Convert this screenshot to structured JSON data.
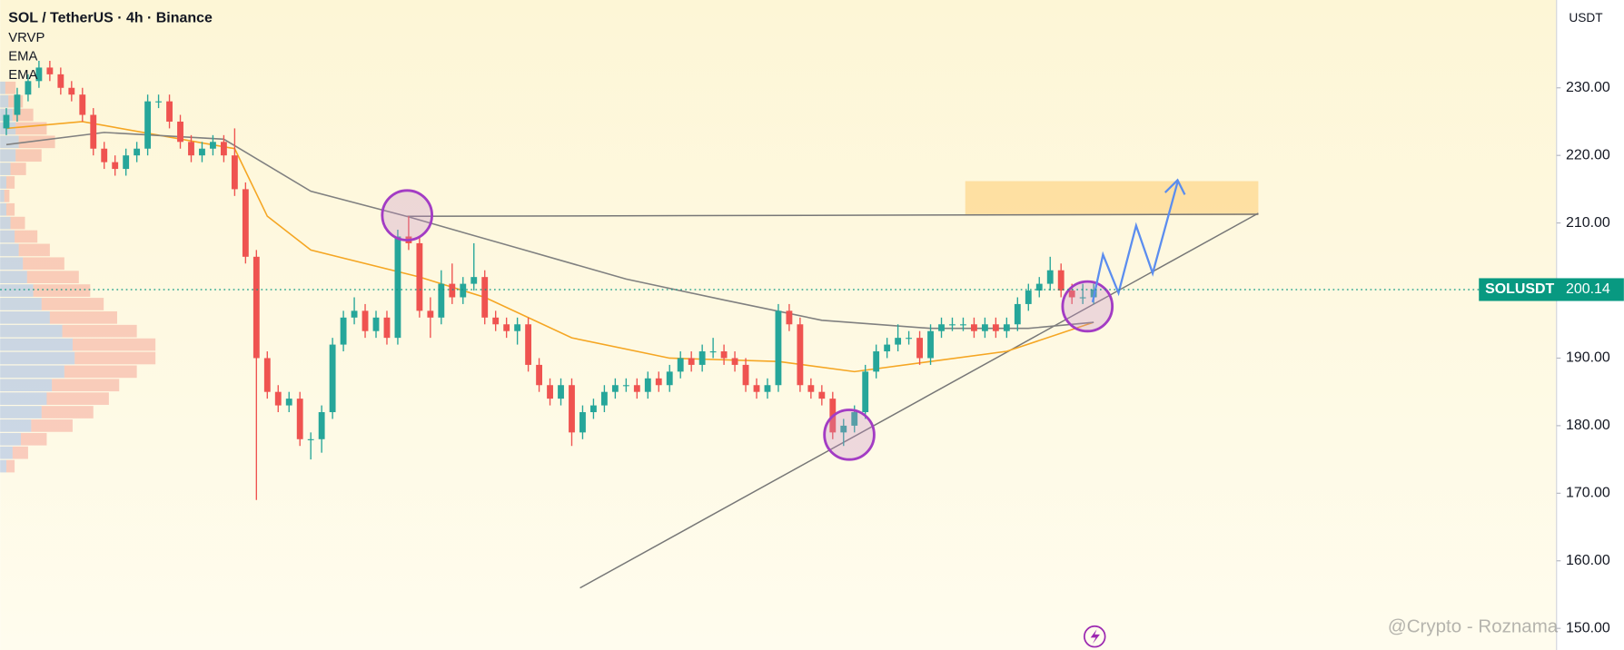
{
  "chart_data": {
    "type": "candlestick",
    "title": "SOL / TetherUS · 4h · Binance",
    "indicators": [
      "VRVP",
      "EMA",
      "EMA"
    ],
    "currency": "USDT",
    "symbol_label": "SOLUSDT",
    "last_price": 200.14,
    "watermark": "@Crypto - Roznama",
    "up_color": "#26a69a",
    "down_color": "#ef5350",
    "ylim": [
      146.8,
      243
    ],
    "yticks": [
      {
        "value": 150,
        "label": "150.00"
      },
      {
        "value": 160,
        "label": "160.00"
      },
      {
        "value": 170,
        "label": "170.00"
      },
      {
        "value": 180,
        "label": "180.00"
      },
      {
        "value": 190,
        "label": "190.00"
      },
      {
        "value": 200,
        "label": "200.00"
      },
      {
        "value": 210,
        "label": "210.00"
      },
      {
        "value": 220,
        "label": "220.00"
      },
      {
        "value": 230,
        "label": "230.00"
      }
    ],
    "ohlc": [
      [
        224,
        227,
        223,
        226
      ],
      [
        226,
        230,
        225,
        229
      ],
      [
        229,
        232,
        228,
        231
      ],
      [
        231,
        234,
        230,
        233
      ],
      [
        233,
        234,
        231,
        232
      ],
      [
        232,
        233,
        229,
        230
      ],
      [
        230,
        231,
        228,
        229
      ],
      [
        229,
        230,
        225,
        226
      ],
      [
        226,
        227,
        220,
        221
      ],
      [
        221,
        222,
        218,
        219
      ],
      [
        219,
        220,
        217,
        218
      ],
      [
        218,
        221,
        217,
        220
      ],
      [
        220,
        222,
        219,
        221
      ],
      [
        221,
        229,
        220,
        228
      ],
      [
        228,
        229,
        227,
        228
      ],
      [
        228,
        229,
        224,
        225
      ],
      [
        225,
        226,
        221,
        222
      ],
      [
        222,
        223,
        219,
        220
      ],
      [
        220,
        222,
        219,
        221
      ],
      [
        221,
        223,
        220,
        222
      ],
      [
        222,
        223,
        219,
        220
      ],
      [
        220,
        224,
        214,
        215
      ],
      [
        215,
        216,
        204,
        205
      ],
      [
        205,
        206,
        169,
        190
      ],
      [
        190,
        191,
        184,
        185
      ],
      [
        185,
        186,
        182,
        183
      ],
      [
        183,
        185,
        182,
        184
      ],
      [
        184,
        185,
        177,
        178
      ],
      [
        178,
        179,
        175,
        178
      ],
      [
        178,
        183,
        176,
        182
      ],
      [
        182,
        193,
        181,
        192
      ],
      [
        192,
        197,
        191,
        196
      ],
      [
        196,
        199,
        195,
        197
      ],
      [
        197,
        198,
        193,
        194
      ],
      [
        194,
        197,
        193,
        196
      ],
      [
        196,
        197,
        192,
        193
      ],
      [
        193,
        209,
        192,
        208
      ],
      [
        208,
        211,
        206,
        207
      ],
      [
        207,
        208,
        196,
        197
      ],
      [
        197,
        199,
        193,
        196
      ],
      [
        196,
        203,
        195,
        201
      ],
      [
        201,
        204,
        198,
        199
      ],
      [
        199,
        202,
        198,
        201
      ],
      [
        201,
        207,
        200,
        202
      ],
      [
        202,
        203,
        195,
        196
      ],
      [
        196,
        197,
        194,
        195
      ],
      [
        195,
        196,
        193,
        194
      ],
      [
        194,
        196,
        192,
        195
      ],
      [
        195,
        196,
        188,
        189
      ],
      [
        189,
        190,
        185,
        186
      ],
      [
        186,
        187,
        183,
        184
      ],
      [
        184,
        187,
        183,
        186
      ],
      [
        186,
        187,
        177,
        179
      ],
      [
        179,
        183,
        178,
        182
      ],
      [
        182,
        184,
        181,
        183
      ],
      [
        183,
        186,
        182,
        185
      ],
      [
        185,
        187,
        184,
        186
      ],
      [
        186,
        187,
        185,
        186
      ],
      [
        186,
        187,
        184,
        185
      ],
      [
        185,
        188,
        184,
        187
      ],
      [
        187,
        188,
        185,
        186
      ],
      [
        186,
        189,
        185,
        188
      ],
      [
        188,
        191,
        187,
        190
      ],
      [
        190,
        191,
        188,
        189
      ],
      [
        189,
        192,
        188,
        191
      ],
      [
        191,
        193,
        190,
        191
      ],
      [
        191,
        192,
        189,
        190
      ],
      [
        190,
        191,
        188,
        189
      ],
      [
        189,
        190,
        185,
        186
      ],
      [
        186,
        187,
        184,
        185
      ],
      [
        185,
        187,
        184,
        186
      ],
      [
        186,
        198,
        185,
        197
      ],
      [
        197,
        198,
        194,
        195
      ],
      [
        195,
        196,
        185,
        186
      ],
      [
        186,
        187,
        184,
        185
      ],
      [
        185,
        186,
        183,
        184
      ],
      [
        184,
        185,
        178,
        179
      ],
      [
        179,
        181,
        177,
        180
      ],
      [
        180,
        183,
        179,
        182
      ],
      [
        182,
        189,
        181,
        188
      ],
      [
        188,
        192,
        187,
        191
      ],
      [
        191,
        193,
        190,
        192
      ],
      [
        192,
        195,
        191,
        193
      ],
      [
        193,
        194,
        192,
        193
      ],
      [
        193,
        194,
        189,
        190
      ],
      [
        190,
        195,
        189,
        194
      ],
      [
        194,
        196,
        193,
        195
      ],
      [
        195,
        196,
        194,
        195
      ],
      [
        195,
        196,
        194,
        195
      ],
      [
        195,
        196,
        193,
        194
      ],
      [
        194,
        196,
        193,
        195
      ],
      [
        195,
        196,
        193,
        194
      ],
      [
        194,
        196,
        193,
        195
      ],
      [
        195,
        199,
        194,
        198
      ],
      [
        198,
        201,
        197,
        200
      ],
      [
        200,
        202,
        199,
        201
      ],
      [
        201,
        205,
        200,
        203
      ],
      [
        203,
        204,
        199,
        200
      ],
      [
        200,
        201,
        198,
        199
      ],
      [
        199,
        201,
        198,
        199
      ],
      [
        199,
        201,
        198,
        200.14
      ]
    ],
    "series": [
      {
        "name": "EMA",
        "color": "#f5a623",
        "x": [
          0,
          7,
          21,
          24,
          28,
          38,
          44,
          52,
          61,
          71,
          78,
          85,
          92,
          100
        ],
        "values": [
          224,
          225,
          221,
          211,
          206,
          202,
          199,
          193,
          190,
          189.5,
          188,
          189.5,
          191,
          195.3
        ]
      },
      {
        "name": "EMA",
        "color": "#808080",
        "x": [
          0,
          9,
          20,
          28,
          37,
          47,
          57,
          66,
          75,
          85,
          94,
          100
        ],
        "values": [
          221.6,
          223.4,
          222.4,
          214.7,
          210.9,
          206.3,
          201.7,
          198.6,
          195.6,
          194.4,
          194.4,
          195.3
        ]
      }
    ],
    "volume_profile": {
      "prices": [
        230,
        228,
        226,
        224,
        222,
        220,
        218,
        216,
        214,
        212,
        210,
        208,
        206,
        204,
        202,
        200,
        198,
        196,
        194,
        192,
        190,
        188,
        186,
        184,
        182,
        180,
        178,
        176,
        174
      ],
      "buy": [
        5,
        8,
        12,
        15,
        18,
        15,
        10,
        6,
        4,
        6,
        10,
        14,
        18,
        22,
        26,
        32,
        40,
        48,
        60,
        70,
        72,
        62,
        50,
        45,
        40,
        30,
        20,
        12,
        6
      ],
      "sell": [
        10,
        14,
        20,
        30,
        35,
        25,
        15,
        8,
        5,
        8,
        14,
        22,
        30,
        40,
        50,
        55,
        60,
        65,
        72,
        80,
        78,
        70,
        65,
        60,
        50,
        40,
        25,
        15,
        8
      ]
    }
  }
}
